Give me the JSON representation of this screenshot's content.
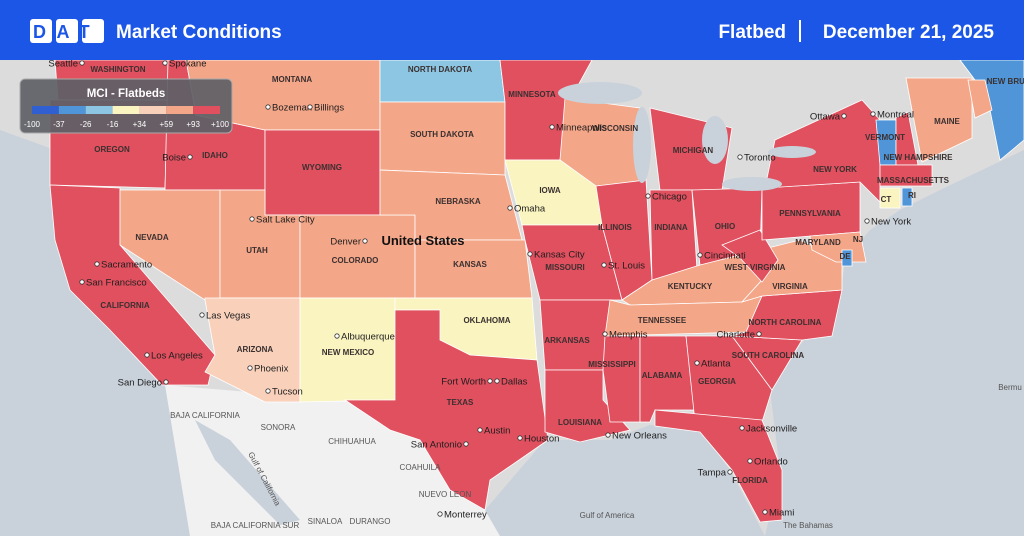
{
  "header": {
    "logo": "DAT",
    "title": "Market Conditions",
    "equipment": "Flatbed",
    "date": "December 21, 2025"
  },
  "legend": {
    "title": "MCI - Flatbeds",
    "ticks": [
      "-100",
      "-37",
      "-26",
      "-16",
      "+34",
      "+59",
      "+93",
      "+100"
    ],
    "colors": [
      "#2f5fd0",
      "#4f95d8",
      "#8dc6e3",
      "#faf4c0",
      "#f9d1bb",
      "#f4a688",
      "#e0505f"
    ]
  },
  "map": {
    "country_label": "United States",
    "state_labels": [
      "WASHINGTON",
      "OREGON",
      "IDAHO",
      "MONTANA",
      "WYOMING",
      "NORTH DAKOTA",
      "SOUTH DAKOTA",
      "NEBRASKA",
      "NEVADA",
      "UTAH",
      "COLORADO",
      "KANSAS",
      "CALIFORNIA",
      "ARIZONA",
      "NEW MEXICO",
      "OKLAHOMA",
      "TEXAS",
      "MINNESOTA",
      "IOWA",
      "MISSOURI",
      "ARKANSAS",
      "LOUISIANA",
      "MISSISSIPPI",
      "ALABAMA",
      "GEORGIA",
      "FLORIDA",
      "SOUTH CAROLINA",
      "NORTH CAROLINA",
      "TENNESSEE",
      "KENTUCKY",
      "VIRGINIA",
      "WEST VIRGINIA",
      "MARYLAND",
      "PENNSYLVANIA",
      "NEW YORK",
      "OHIO",
      "INDIANA",
      "ILLINOIS",
      "MICHIGAN",
      "WISCONSIN",
      "VERMONT",
      "NEW HAMPSHIRE",
      "MASSACHUSETTS",
      "MAINE",
      "CT",
      "RI",
      "NJ",
      "DE",
      "NEW BRUNSWICK"
    ],
    "region_labels": [
      "BAJA CALIFORNIA",
      "SONORA",
      "CHIHUAHUA",
      "COAHUILA",
      "NUEVO LEON",
      "BAJA CALIFORNIA SUR",
      "SINALOA",
      "DURANGO"
    ],
    "city_labels": [
      "Seattle",
      "Spokane",
      "Bozeman",
      "Billings",
      "Boise",
      "Salt Lake City",
      "Sacramento",
      "San Francisco",
      "Las Vegas",
      "Los Angeles",
      "San Diego",
      "Phoenix",
      "Tucson",
      "Denver",
      "Albuquerque",
      "Omaha",
      "Minneapolis",
      "Kansas City",
      "St. Louis",
      "Chicago",
      "Cincinnati",
      "Fort Worth",
      "Dallas",
      "Austin",
      "San Antonio",
      "Houston",
      "New Orleans",
      "Memphis",
      "Atlanta",
      "Charlotte",
      "Jacksonville",
      "Tampa",
      "Orlando",
      "Miami",
      "Toronto",
      "Ottawa",
      "Montreal",
      "New York",
      "Monterrey"
    ],
    "water_labels": [
      "Gulf of California",
      "Gulf of America",
      "Bermu",
      "The Bahamas"
    ]
  }
}
